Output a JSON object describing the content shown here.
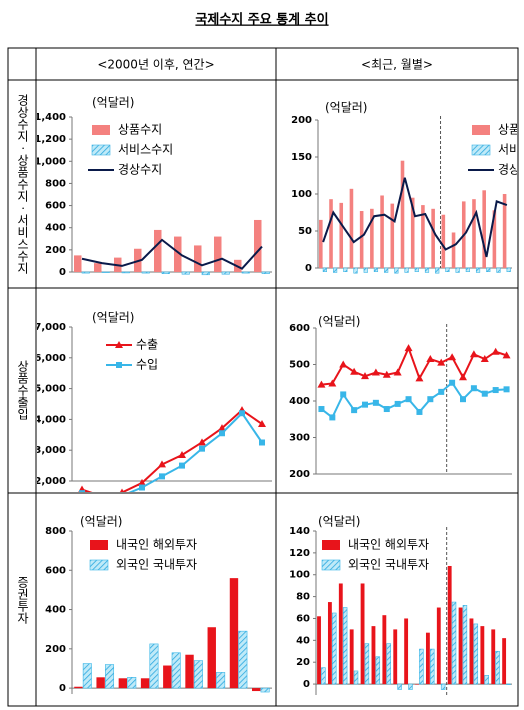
{
  "title": "국제수지 주요 통계 추이",
  "columns": [
    "<2000년 이후, 연간>",
    "<최근, 월별>"
  ],
  "rows": [
    "경상수지ㆍ상품수지ㆍ서비스수지",
    "상품수출입",
    "증권투자"
  ],
  "chart_data": [
    {
      "type": "combo",
      "unit": "(억달러)",
      "categories": [
        null,
        null,
        null,
        null,
        null,
        null,
        null,
        null,
        null,
        null
      ],
      "series": [
        {
          "name": "상품수지",
          "color": "#f4817f",
          "kind": "bar",
          "values": [
            150,
            80,
            130,
            210,
            380,
            320,
            240,
            320,
            110,
            470
          ]
        },
        {
          "name": "서비스수지",
          "color": "#3cb4e5",
          "kind": "bar",
          "pattern": "hatch",
          "values": [
            -10,
            -5,
            -8,
            -10,
            -15,
            -20,
            -25,
            -20,
            -10,
            -15
          ]
        },
        {
          "name": "경상수지",
          "color": "#0a1a4a",
          "kind": "line",
          "values": [
            120,
            80,
            55,
            110,
            290,
            150,
            60,
            120,
            30,
            230
          ]
        }
      ],
      "ylim": [
        0,
        1400
      ],
      "yticks": [
        0,
        200,
        400,
        600,
        800,
        {
          "value": 1000,
          "label": "1,000"
        },
        {
          "value": 1200,
          "label": "1,200"
        },
        {
          "value": 1400,
          "label": "1,400"
        }
      ],
      "legend": "upper left"
    },
    {
      "type": "combo",
      "unit": "(억달러)",
      "categories": [
        null,
        null,
        null,
        null,
        null,
        null,
        null,
        null,
        null,
        null,
        null,
        null,
        null,
        null,
        null,
        null,
        null,
        null,
        null
      ],
      "series": [
        {
          "name": "상품수지",
          "color": "#f4817f",
          "kind": "bar",
          "values": [
            65,
            93,
            88,
            107,
            77,
            80,
            98,
            87,
            145,
            95,
            85,
            80,
            72,
            48,
            90,
            93,
            105,
            78,
            100
          ]
        },
        {
          "name": "서비스수지",
          "color": "#3cb4e5",
          "kind": "bar",
          "pattern": "hatch",
          "values": [
            -5,
            -6,
            -5,
            -7,
            -6,
            -5,
            -6,
            -7,
            -6,
            -5,
            -6,
            -7,
            -5,
            -6,
            -5,
            -6,
            -5,
            -6,
            -5
          ]
        },
        {
          "name": "경상수지",
          "color": "#0a1a4a",
          "kind": "line",
          "values": [
            35,
            75,
            55,
            35,
            45,
            70,
            72,
            63,
            122,
            70,
            73,
            45,
            25,
            32,
            48,
            75,
            15,
            90,
            85
          ]
        }
      ],
      "ylim": [
        0,
        200
      ],
      "yticks": [
        0,
        50,
        100,
        150,
        200
      ],
      "legend": "upper right"
    },
    {
      "type": "line",
      "unit": "(억달러)",
      "categories": [
        null,
        null,
        null,
        null,
        null,
        null,
        null,
        null,
        null,
        null
      ],
      "series": [
        {
          "name": "수출",
          "color": "#e8141b",
          "marker": "triangle",
          "values": [
            1723,
            1504,
            1625,
            1938,
            2538,
            2844,
            3255,
            3715,
            4300,
            3850
          ]
        },
        {
          "name": "수입",
          "color": "#38b6e8",
          "marker": "square",
          "values": [
            1604,
            1411,
            1521,
            1788,
            2150,
            2500,
            3050,
            3550,
            4200,
            3250
          ]
        }
      ],
      "ylim": [
        2000,
        7000
      ],
      "yticks": [
        {
          "value": 2000,
          "label": "2,000"
        },
        {
          "value": 3000,
          "label": "3,000"
        },
        {
          "value": 4000,
          "label": "4,000"
        },
        {
          "value": 5000,
          "label": "5,000"
        },
        {
          "value": 6000,
          "label": "6,000"
        },
        {
          "value": 7000,
          "label": "7,000"
        }
      ],
      "legend": "upper left"
    },
    {
      "type": "line",
      "unit": "(억달러)",
      "categories": [
        null,
        null,
        null,
        null,
        null,
        null,
        null,
        null,
        null,
        null,
        null,
        null,
        null,
        null,
        null,
        null,
        null,
        null
      ],
      "series": [
        {
          "color": "#e8141b",
          "marker": "triangle",
          "values": [
            445,
            448,
            500,
            480,
            468,
            478,
            472,
            478,
            545,
            462,
            515,
            505,
            520,
            465,
            528,
            515,
            535,
            525
          ]
        },
        {
          "color": "#38b6e8",
          "marker": "square",
          "values": [
            378,
            355,
            418,
            375,
            390,
            395,
            378,
            392,
            405,
            370,
            405,
            425,
            450,
            405,
            435,
            420,
            430,
            432
          ]
        }
      ],
      "ylim": [
        200,
        600
      ],
      "yticks": [
        200,
        300,
        400,
        500,
        600
      ]
    },
    {
      "type": "bar",
      "unit": "(억달러)",
      "categories": [
        null,
        null,
        null,
        null,
        null,
        null,
        null,
        null,
        null
      ],
      "series": [
        {
          "name": "내국인 해외투자",
          "color": "#e8141b",
          "values": [
            7,
            55,
            50,
            50,
            115,
            170,
            310,
            560,
            -15
          ]
        },
        {
          "name": "외국인 국내투자",
          "color": "#38b6e8",
          "pattern": "hatch",
          "values": [
            125,
            120,
            55,
            225,
            180,
            140,
            80,
            290,
            -20
          ]
        }
      ],
      "ylim": [
        -30,
        800
      ],
      "yticks": [
        0,
        200,
        400,
        600,
        800
      ],
      "legend": "upper left"
    },
    {
      "type": "bar",
      "unit": "(억달러)",
      "categories": [
        null,
        null,
        null,
        null,
        null,
        null,
        null,
        null,
        null,
        null,
        null,
        null,
        null,
        null,
        null,
        null,
        null,
        null
      ],
      "series": [
        {
          "name": "내국인 해외투자",
          "color": "#e8141b",
          "values": [
            62,
            75,
            92,
            50,
            92,
            53,
            63,
            50,
            60,
            0,
            47,
            70,
            108,
            70,
            60,
            53,
            50,
            42
          ]
        },
        {
          "name": "외국인 국내투자",
          "color": "#38b6e8",
          "pattern": "hatch",
          "values": [
            15,
            65,
            70,
            12,
            37,
            25,
            37,
            -5,
            -5,
            32,
            32,
            -5,
            75,
            72,
            55,
            8,
            30,
            0
          ]
        }
      ],
      "ylim": [
        -10,
        140
      ],
      "yticks": [
        0,
        20,
        40,
        60,
        80,
        100,
        120,
        140
      ],
      "legend": "upper left"
    }
  ]
}
